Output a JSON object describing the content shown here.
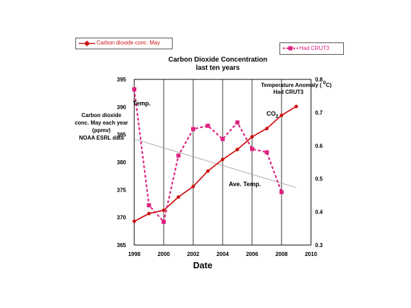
{
  "legend": {
    "co2": "Carbon dioxide conc. May",
    "temp": "Had CRUT3"
  },
  "chart_data": {
    "type": "line",
    "title": "Carbon Dioxide Concentration",
    "subtitle": "last ten years",
    "xlabel": "Date",
    "x_ticks": [
      1998,
      2000,
      2002,
      2004,
      2006,
      2008,
      2010
    ],
    "xlim": [
      1998,
      2010
    ],
    "grid": "vertical",
    "y_left": {
      "label_lines": [
        "Carbon dioxide",
        "conc. May each year",
        "(ppmv)",
        "NOAA ESRL data"
      ],
      "ylim": [
        365,
        395
      ],
      "ticks": [
        365,
        370,
        375,
        380,
        385,
        390,
        395
      ]
    },
    "y_right": {
      "label_line1": "Temperature Anomaly ( ",
      "label_sup": "0",
      "label_line1_end": "C)",
      "label_line2": "Had CRUT3",
      "ylim": [
        0.3,
        0.8
      ],
      "ticks": [
        "0.3",
        "0.4",
        "0.5",
        "0.6",
        "0.7",
        "0.8"
      ]
    },
    "series": [
      {
        "name": "Carbon dioxide conc. May",
        "axis": "left",
        "color": "#cc1111",
        "x": [
          1998,
          1999,
          2000,
          2001,
          2002,
          2003,
          2004,
          2005,
          2006,
          2007,
          2008,
          2009
        ],
        "values": [
          369.3,
          370.7,
          371.3,
          373.7,
          375.6,
          378.4,
          380.5,
          382.3,
          384.6,
          386.1,
          388.5,
          390.1
        ]
      },
      {
        "name": "Had CRUT3",
        "axis": "right",
        "color": "#e0207f",
        "dashed": true,
        "x": [
          1998,
          1999,
          2000,
          2001,
          2002,
          2003,
          2004,
          2005,
          2006,
          2007,
          2008
        ],
        "values": [
          0.77,
          0.42,
          0.37,
          0.57,
          0.65,
          0.66,
          0.62,
          0.67,
          0.59,
          0.58,
          0.46
        ]
      }
    ],
    "trendline": {
      "axis": "left",
      "x": [
        1998,
        2009
      ],
      "values": [
        384.2,
        375.4
      ],
      "color": "#999999"
    },
    "annotations": {
      "temp": "Temp.",
      "ave_temp": "Ave. Temp.",
      "co2": "CO",
      "co2_sub": "2"
    }
  }
}
